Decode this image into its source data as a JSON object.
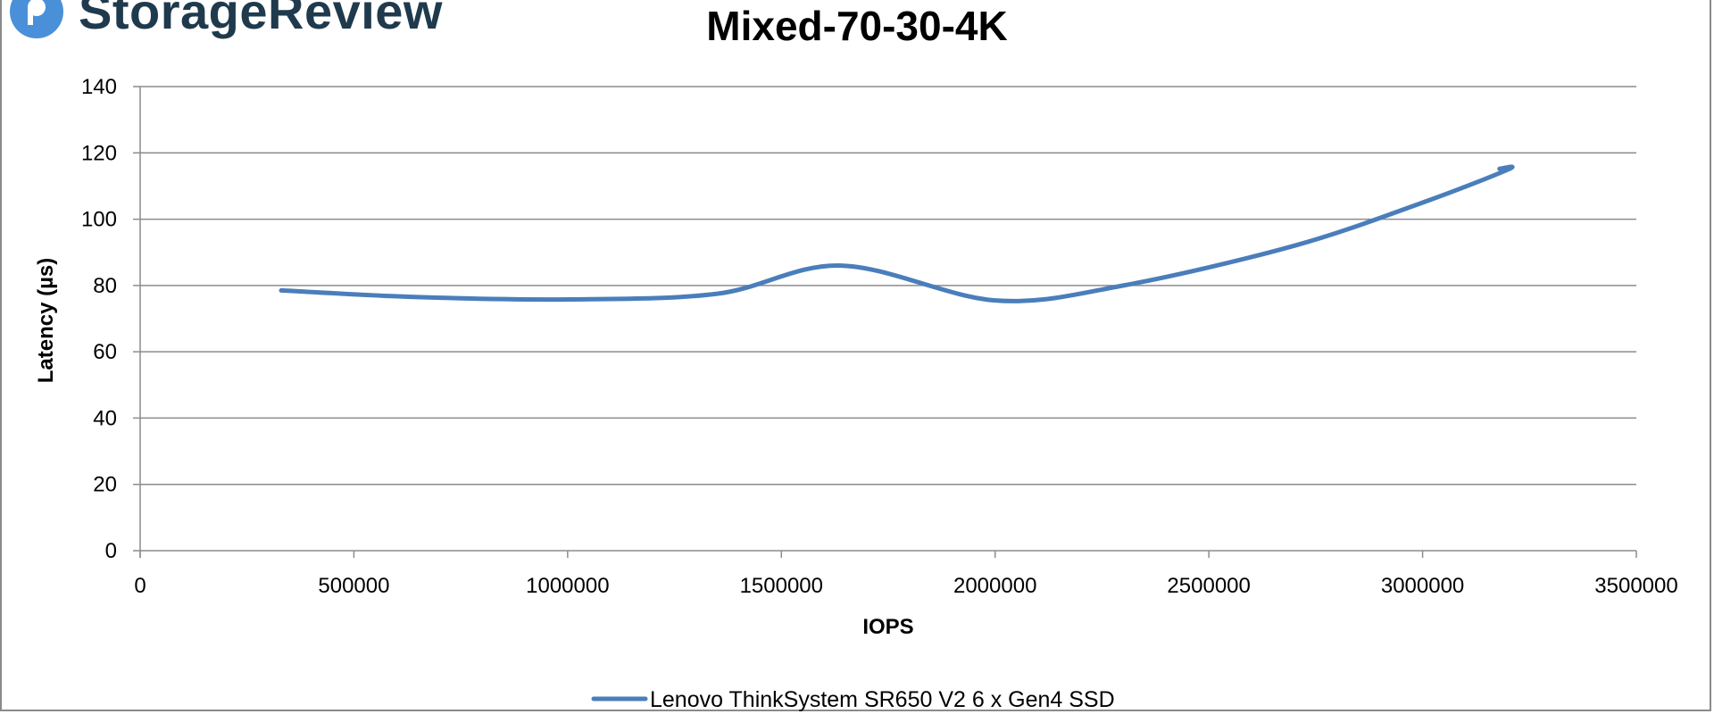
{
  "brand": {
    "name": "StorageReview",
    "color": "#1f3a4d",
    "mark_color": "#4a90d9"
  },
  "chart_data": {
    "type": "line",
    "title": "Mixed-70-30-4K",
    "xlabel": "IOPS",
    "ylabel": "Latency (µs)",
    "xlim": [
      0,
      3500000
    ],
    "ylim": [
      0,
      140
    ],
    "x_ticks": [
      0,
      500000,
      1000000,
      1500000,
      2000000,
      2500000,
      3000000,
      3500000
    ],
    "y_ticks": [
      0,
      20,
      40,
      60,
      80,
      100,
      120,
      140
    ],
    "grid": "horizontal",
    "legend_position": "bottom",
    "series": [
      {
        "name": "Lenovo ThinkSystem SR650 V2 6 x Gen4 SSD",
        "color": "#4a7ebb",
        "x": [
          330000,
          650000,
          1000000,
          1350000,
          1640000,
          2000000,
          2300000,
          2700000,
          3000000,
          3200000,
          3180000
        ],
        "y": [
          78.5,
          76.5,
          75.8,
          77.5,
          86,
          75.5,
          80,
          92,
          105,
          115,
          115.2
        ]
      }
    ]
  }
}
